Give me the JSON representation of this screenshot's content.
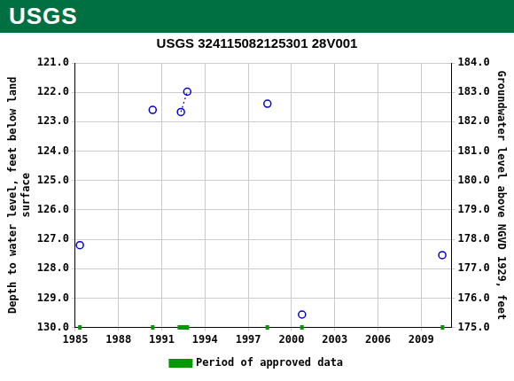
{
  "chart_data": {
    "type": "scatter",
    "logo": "USGS",
    "title": "USGS 324115082125301 28V001",
    "y_label": [
      "Depth to water level, feet below land",
      "surface"
    ],
    "y2_label": "Groundwater level above NGVD 1929, feet",
    "xlim": [
      1985,
      2011.1
    ],
    "xticks": [
      1985,
      1988,
      1991,
      1994,
      1997,
      2000,
      2003,
      2006,
      2009
    ],
    "ylim": [
      130,
      121
    ],
    "yticks": [
      {
        "value": 121,
        "label": "121.0"
      },
      {
        "value": 122,
        "label": "122.0"
      },
      {
        "value": 123,
        "label": "123.0"
      },
      {
        "value": 124,
        "label": "124.0"
      },
      {
        "value": 125,
        "label": "125.0"
      },
      {
        "value": 126,
        "label": "126.0"
      },
      {
        "value": 127,
        "label": "127.0"
      },
      {
        "value": 128,
        "label": "128.0"
      },
      {
        "value": 129,
        "label": "129.0"
      },
      {
        "value": 130,
        "label": "130.0"
      }
    ],
    "y2lim": [
      175,
      184
    ],
    "y2ticks": [
      {
        "value": 175,
        "label": "175.0"
      },
      {
        "value": 176,
        "label": "176.0"
      },
      {
        "value": 177,
        "label": "177.0"
      },
      {
        "value": 178,
        "label": "178.0"
      },
      {
        "value": 179,
        "label": "179.0"
      },
      {
        "value": 180,
        "label": "180.0"
      },
      {
        "value": 181,
        "label": "181.0"
      },
      {
        "value": 182,
        "label": "182.0"
      },
      {
        "value": 183,
        "label": "183.0"
      },
      {
        "value": 184,
        "label": "184.0"
      }
    ],
    "grid": true,
    "series": [
      {
        "color": "#0000cc",
        "marker": "circle",
        "line_style": "none",
        "x": [
          1985.32,
          1990.37,
          1992.33,
          1992.77,
          1998.33,
          2000.73,
          2010.46
        ],
        "values": [
          127.2,
          122.6,
          122.67,
          121.98,
          122.39,
          129.56,
          127.54
        ]
      },
      {
        "color": "#0000cc",
        "marker": "none",
        "line_style": "dotted",
        "x": [
          1992.33,
          1992.77
        ],
        "values": [
          122.67,
          121.98
        ]
      }
    ],
    "approved_periods": {
      "name": "Period of approved data",
      "color": "#009900",
      "ranges": [
        [
          1985.2,
          1985.45
        ],
        [
          1990.25,
          1990.5
        ],
        [
          1992.1,
          1992.9
        ],
        [
          1998.2,
          1998.45
        ],
        [
          2000.6,
          2000.85
        ],
        [
          2010.35,
          2010.6
        ]
      ]
    }
  }
}
